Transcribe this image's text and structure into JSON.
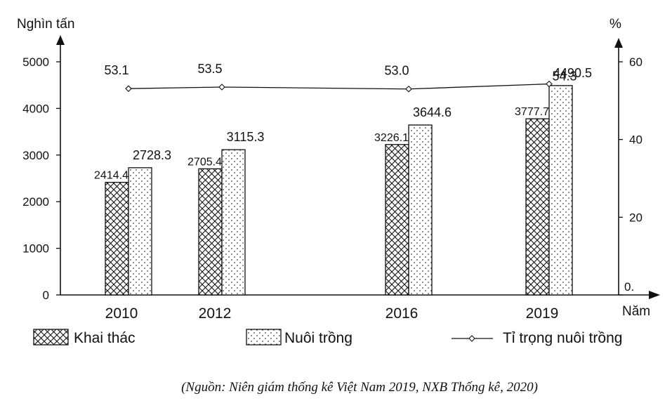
{
  "chart_data": {
    "type": "bar",
    "categories": [
      "2010",
      "2012",
      "2016",
      "2019"
    ],
    "series": [
      {
        "name": "Khai thác",
        "kind": "bar",
        "pattern": "crosshatch",
        "values": [
          2414.4,
          2705.4,
          3226.1,
          3777.7
        ],
        "labels": [
          "2414.4",
          "2705.4",
          "3226.1",
          "3777.7"
        ]
      },
      {
        "name": "Nuôi trồng",
        "kind": "bar",
        "pattern": "dots",
        "values": [
          2728.3,
          3115.3,
          3644.6,
          4490.5
        ],
        "labels": [
          "2728.3",
          "3115.3",
          "3644.6",
          "4490.5"
        ]
      },
      {
        "name": "Tỉ trọng nuôi trồng",
        "kind": "line",
        "axis": "right",
        "values": [
          53.1,
          53.5,
          53.0,
          54.3
        ],
        "labels": [
          "53.1",
          "53.5",
          "53.0",
          "54.3"
        ]
      }
    ],
    "ylabel_left": "Nghìn tấn",
    "ylabel_right": "%",
    "xlabel": "Năm",
    "ylim_left": [
      0,
      5000
    ],
    "yticks_left": [
      "0",
      "1000",
      "2000",
      "3000",
      "4000",
      "5000"
    ],
    "ylim_right": [
      0,
      60
    ],
    "yticks_right": [
      "0.",
      "20",
      "40",
      "60"
    ],
    "legend_position": "bottom",
    "grid": false,
    "colors": {
      "ink": "#111111",
      "bar_fill": "#ffffff"
    }
  },
  "source_note": "(Nguồn: Niên giám thống kê Việt Nam 2019, NXB Thống kê, 2020)"
}
